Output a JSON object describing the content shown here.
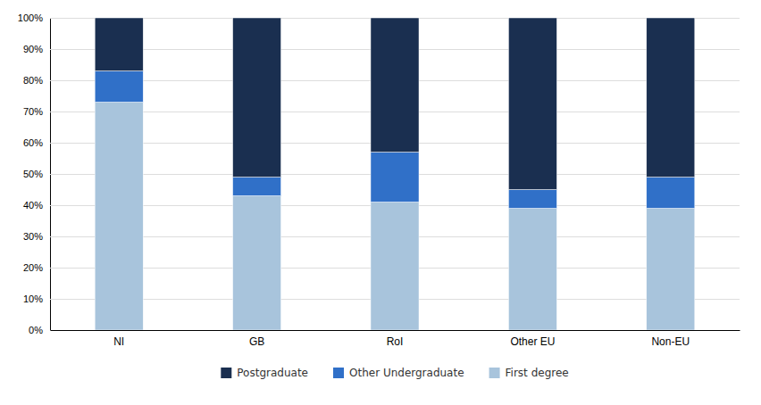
{
  "chart_data": {
    "type": "bar",
    "stacked": true,
    "categories": [
      "NI",
      "GB",
      "RoI",
      "Other EU",
      "Non-EU"
    ],
    "series": [
      {
        "name": "First degree",
        "color": "#a8c4dc",
        "values": [
          73,
          43,
          41,
          39,
          39
        ]
      },
      {
        "name": "Other Undergraduate",
        "color": "#3070c8",
        "values": [
          10,
          6,
          16,
          6,
          10
        ]
      },
      {
        "name": "Postgraduate",
        "color": "#1a2f50",
        "values": [
          17,
          51,
          43,
          55,
          51
        ]
      }
    ],
    "ylim": [
      0,
      100
    ],
    "yticks": [
      {
        "value": 0,
        "label": "0%"
      },
      {
        "value": 10,
        "label": "10%"
      },
      {
        "value": 20,
        "label": "20%"
      },
      {
        "value": 30,
        "label": "30%"
      },
      {
        "value": 40,
        "label": "40%"
      },
      {
        "value": 50,
        "label": "50%"
      },
      {
        "value": 60,
        "label": "60%"
      },
      {
        "value": 70,
        "label": "70%"
      },
      {
        "value": 80,
        "label": "80%"
      },
      {
        "value": 90,
        "label": "90%"
      },
      {
        "value": 100,
        "label": "100%"
      }
    ],
    "grid": true,
    "legend": "bottom"
  }
}
